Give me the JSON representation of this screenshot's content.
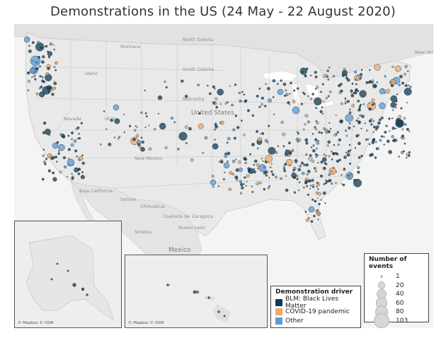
{
  "title": "Demonstrations in the US (24 May - 22 August 2020)",
  "map_labels": {
    "montana": "Montana",
    "north_dakota": "North Dakota",
    "south_dakota": "South Dakota",
    "idaho": "Idaho",
    "nebraska": "Nebraska",
    "united_states": "United States",
    "nevada": "Nevada",
    "utah": "Utah",
    "new_mexico": "New Mexico",
    "baja_california": "Baja California",
    "sonora": "Sonora",
    "chihuahua": "Chihuahua",
    "coahuila": "Coahuila de Zaragoza",
    "nuevo_leon": "Nuevo León",
    "sinaloa": "Sinaloa",
    "mexico": "Mexico",
    "new_york": "New York"
  },
  "credits": {
    "alaska": "© Mapbox © OSM",
    "hawaii": "© Mapbox © OSM"
  },
  "legend_driver": {
    "title": "Demonstration driver",
    "items": [
      {
        "label": "BLM: Black Lives Matter",
        "color": "#123a4f"
      },
      {
        "label": "COVID-19 pandemic",
        "color": "#f0a868"
      },
      {
        "label": "Other",
        "color": "#5b9bd5"
      }
    ]
  },
  "legend_size": {
    "title": "Number of events",
    "items": [
      {
        "label": "1",
        "value": 1
      },
      {
        "label": "20",
        "value": 20
      },
      {
        "label": "40",
        "value": 40
      },
      {
        "label": "60",
        "value": 60
      },
      {
        "label": "80",
        "value": 80
      },
      {
        "label": "103",
        "value": 103
      }
    ]
  },
  "colors": {
    "land": "#e6e6e6",
    "water": "#ffffff",
    "border": "#bdbdbd",
    "blm": "#123a4f",
    "covid": "#f0a868",
    "other": "#5b9bd5"
  }
}
